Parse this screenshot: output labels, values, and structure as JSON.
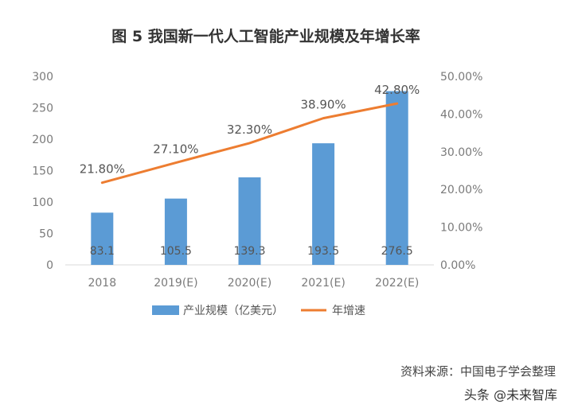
{
  "title": "图 5  我国新一代人工智能产业规模及年增长率",
  "source": "资料来源：中国电子学会整理",
  "credit": "头条 @未来智库",
  "chart_data": {
    "type": "bar",
    "categories": [
      "2018",
      "2019(E)",
      "2020(E)",
      "2021(E)",
      "2022(E)"
    ],
    "series": [
      {
        "name": "产业规模（亿美元）",
        "type": "bar",
        "axis": "left",
        "values": [
          83.1,
          105.5,
          139.3,
          193.5,
          276.5
        ],
        "labels": [
          "83.1",
          "105.5",
          "139.3",
          "193.5",
          "276.5"
        ],
        "color": "#5b9bd5"
      },
      {
        "name": "年增速",
        "type": "line",
        "axis": "right",
        "values": [
          21.8,
          27.1,
          32.3,
          38.9,
          42.8
        ],
        "labels": [
          "21.80%",
          "27.10%",
          "32.30%",
          "38.90%",
          "42.80%"
        ],
        "color": "#ed7d31"
      }
    ],
    "y_left": {
      "min": 0,
      "max": 300,
      "ticks": [
        "0",
        "50",
        "100",
        "150",
        "200",
        "250",
        "300"
      ]
    },
    "y_right": {
      "min": 0,
      "max": 50,
      "ticks": [
        "0.00%",
        "10.00%",
        "20.00%",
        "30.00%",
        "40.00%",
        "50.00%"
      ]
    },
    "grid": false,
    "legend_position": "bottom"
  }
}
